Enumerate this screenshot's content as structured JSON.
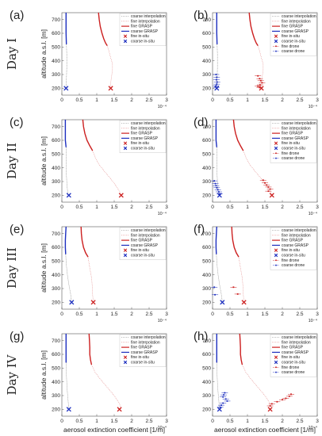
{
  "figure": {
    "day_labels": [
      "Day I",
      "Day II",
      "Day III",
      "Day IV"
    ],
    "xlabel": "aerosol extinction coefficient [1/m]",
    "ylabel": "altitude a.s.l. [m]",
    "x_exponent": "10⁻⁴",
    "colors": {
      "coarse_interpolation": "#7d7d7d",
      "fine_interpolation": "#e28a8a",
      "fine_grasp": "#cc1f1f",
      "coarse_grasp": "#1d2fbf",
      "fine_insitu": "#cc1f1f",
      "coarse_insitu": "#1d2fbf",
      "fine_drone": "#cc1f1f",
      "coarse_drone": "#1d2fbf"
    }
  },
  "chart_data": [
    {
      "panel": "(a)",
      "day": "Day I",
      "type": "line",
      "xlim": [
        0,
        3
      ],
      "ylim": [
        150,
        750
      ],
      "x_scale": "1e-4",
      "xticks": [
        "0",
        "0.5",
        "1",
        "1.5",
        "2",
        "2.5",
        "3"
      ],
      "yticks": [
        "200",
        "300",
        "400",
        "500",
        "600",
        "700"
      ],
      "ylabel": "altitude a.s.l. [m]",
      "xlabel": "",
      "legend": [
        "coarse interpolation",
        "fine interpolation",
        "fine GRASP",
        "coarse GRASP",
        "fine in-situ",
        "coarse in-situ"
      ],
      "fine_grasp": {
        "x": [
          1.05,
          1.07,
          1.1,
          1.15,
          1.2,
          1.25,
          1.3
        ],
        "y": [
          750,
          700,
          650,
          600,
          560,
          530,
          510
        ]
      },
      "fine_interpolation": {
        "x": [
          1.3,
          1.35,
          1.4,
          1.45,
          1.45,
          1.42,
          1.4,
          1.4
        ],
        "y": [
          510,
          470,
          420,
          380,
          330,
          280,
          240,
          205
        ]
      },
      "coarse_grasp": {
        "x": [
          0.12,
          0.12,
          0.12,
          0.12,
          0.13
        ],
        "y": [
          750,
          700,
          650,
          600,
          520
        ]
      },
      "coarse_interpolation": {
        "x": [
          0.13,
          0.14,
          0.14,
          0.13,
          0.12
        ],
        "y": [
          520,
          450,
          350,
          260,
          205
        ]
      },
      "fine_insitu": {
        "x": [
          1.4
        ],
        "y": [
          200
        ]
      },
      "coarse_insitu": {
        "x": [
          0.12
        ],
        "y": [
          200
        ]
      }
    },
    {
      "panel": "(b)",
      "day": "Day I",
      "type": "line",
      "xlim": [
        0,
        3
      ],
      "ylim": [
        150,
        750
      ],
      "x_scale": "1e-4",
      "xticks": [
        "0",
        "0.5",
        "1",
        "1.5",
        "2",
        "2.5",
        "3"
      ],
      "yticks": [
        "200",
        "300",
        "400",
        "500",
        "600",
        "700"
      ],
      "xlabel": "",
      "legend": [
        "coarse interpolation",
        "fine interpolation",
        "fine GRASP",
        "coarse GRASP",
        "fine in-situ",
        "coarse in-situ",
        "fine drone",
        "coarse drone"
      ],
      "fine_grasp": {
        "x": [
          1.05,
          1.07,
          1.1,
          1.15,
          1.2,
          1.25,
          1.3
        ],
        "y": [
          750,
          700,
          650,
          600,
          560,
          530,
          510
        ]
      },
      "fine_interpolation": {
        "x": [
          1.3,
          1.35,
          1.4,
          1.45,
          1.45,
          1.42,
          1.4,
          1.4
        ],
        "y": [
          510,
          470,
          420,
          380,
          330,
          280,
          240,
          205
        ]
      },
      "coarse_grasp": {
        "x": [
          0.12,
          0.12,
          0.12,
          0.12,
          0.13
        ],
        "y": [
          750,
          700,
          650,
          600,
          520
        ]
      },
      "coarse_interpolation": {
        "x": [
          0.13,
          0.14,
          0.14,
          0.13,
          0.12
        ],
        "y": [
          520,
          450,
          350,
          260,
          205
        ]
      },
      "fine_insitu": {
        "x": [
          1.4
        ],
        "y": [
          200
        ]
      },
      "coarse_insitu": {
        "x": [
          0.12
        ],
        "y": [
          200
        ]
      },
      "fine_drone": {
        "x": [
          1.3,
          1.35,
          1.38,
          1.42,
          1.36,
          1.3,
          1.35
        ],
        "y": [
          290,
          270,
          255,
          240,
          225,
          215,
          205
        ]
      },
      "coarse_drone": {
        "x": [
          0.1,
          0.12,
          0.11,
          0.13,
          0.12,
          0.1,
          0.11
        ],
        "y": [
          300,
          280,
          262,
          245,
          230,
          218,
          205
        ]
      }
    },
    {
      "panel": "(c)",
      "day": "Day II",
      "type": "line",
      "xlim": [
        0,
        3
      ],
      "ylim": [
        150,
        750
      ],
      "x_scale": "1e-4",
      "xticks": [
        "0",
        "0.5",
        "1",
        "1.5",
        "2",
        "2.5",
        "3"
      ],
      "yticks": [
        "200",
        "300",
        "400",
        "500",
        "600",
        "700"
      ],
      "ylabel": "altitude a.s.l. [m]",
      "xlabel": "",
      "legend": [
        "coarse interpolation",
        "fine interpolation",
        "fine GRASP",
        "coarse GRASP",
        "fine in-situ",
        "coarse in-situ"
      ],
      "fine_grasp": {
        "x": [
          0.6,
          0.62,
          0.66,
          0.72,
          0.8,
          0.88
        ],
        "y": [
          750,
          700,
          650,
          600,
          560,
          525
        ]
      },
      "fine_interpolation": {
        "x": [
          0.88,
          0.95,
          1.05,
          1.2,
          1.4,
          1.55,
          1.65,
          1.7
        ],
        "y": [
          525,
          480,
          430,
          380,
          320,
          270,
          230,
          205
        ]
      },
      "coarse_grasp": {
        "x": [
          0.1,
          0.1,
          0.1,
          0.1,
          0.12
        ],
        "y": [
          750,
          700,
          650,
          600,
          550
        ]
      },
      "coarse_interpolation": {
        "x": [
          0.12,
          0.13,
          0.13,
          0.15,
          0.18
        ],
        "y": [
          550,
          450,
          350,
          260,
          205
        ]
      },
      "fine_insitu": {
        "x": [
          1.7
        ],
        "y": [
          200
        ]
      },
      "coarse_insitu": {
        "x": [
          0.2
        ],
        "y": [
          200
        ]
      }
    },
    {
      "panel": "(d)",
      "day": "Day II",
      "type": "line",
      "xlim": [
        0,
        3
      ],
      "ylim": [
        150,
        750
      ],
      "x_scale": "1e-4",
      "xticks": [
        "0",
        "0.5",
        "1",
        "1.5",
        "2",
        "2.5",
        "3"
      ],
      "yticks": [
        "200",
        "300",
        "400",
        "500",
        "600",
        "700"
      ],
      "xlabel": "",
      "legend": [
        "coarse interpolation",
        "fine interpolation",
        "fine GRASP",
        "coarse GRASP",
        "fine in-situ",
        "coarse in-situ",
        "fine drone",
        "coarse drone"
      ],
      "fine_grasp": {
        "x": [
          0.6,
          0.62,
          0.66,
          0.72,
          0.8,
          0.88
        ],
        "y": [
          750,
          700,
          650,
          600,
          560,
          525
        ]
      },
      "fine_interpolation": {
        "x": [
          0.88,
          0.95,
          1.05,
          1.2,
          1.4,
          1.55,
          1.65,
          1.7
        ],
        "y": [
          525,
          480,
          430,
          380,
          320,
          270,
          230,
          205
        ]
      },
      "coarse_grasp": {
        "x": [
          0.1,
          0.1,
          0.1,
          0.1,
          0.12
        ],
        "y": [
          750,
          700,
          650,
          600,
          550
        ]
      },
      "coarse_interpolation": {
        "x": [
          0.12,
          0.13,
          0.13,
          0.15,
          0.18
        ],
        "y": [
          550,
          450,
          350,
          260,
          205
        ]
      },
      "fine_insitu": {
        "x": [
          1.7
        ],
        "y": [
          200
        ]
      },
      "coarse_insitu": {
        "x": [
          0.2
        ],
        "y": [
          200
        ]
      },
      "fine_drone": {
        "x": [
          1.45,
          1.5,
          1.55,
          1.6,
          1.65,
          1.6
        ],
        "y": [
          310,
          290,
          275,
          260,
          245,
          230
        ]
      },
      "coarse_drone": {
        "x": [
          0.05,
          0.08,
          0.1,
          0.12,
          0.15,
          0.18,
          0.2
        ],
        "y": [
          305,
          285,
          270,
          255,
          240,
          225,
          210
        ]
      }
    },
    {
      "panel": "(e)",
      "day": "Day III",
      "type": "line",
      "xlim": [
        0,
        3
      ],
      "ylim": [
        150,
        750
      ],
      "x_scale": "1e-4",
      "xticks": [
        "0",
        "0.5",
        "1",
        "1.5",
        "2",
        "2.5",
        "3"
      ],
      "yticks": [
        "200",
        "300",
        "400",
        "500",
        "600",
        "700"
      ],
      "ylabel": "altitude a.s.l. [m]",
      "xlabel": "",
      "legend": [
        "coarse interpolation",
        "fine interpolation",
        "fine GRASP",
        "coarse GRASP",
        "fine in-situ",
        "coarse in-situ"
      ],
      "fine_grasp": {
        "x": [
          0.55,
          0.56,
          0.58,
          0.62,
          0.68,
          0.75
        ],
        "y": [
          750,
          700,
          650,
          600,
          560,
          530
        ]
      },
      "fine_interpolation": {
        "x": [
          0.75,
          0.8,
          0.85,
          0.87,
          0.88,
          0.9
        ],
        "y": [
          530,
          450,
          380,
          320,
          260,
          205
        ]
      },
      "coarse_grasp": {
        "x": [
          0.12,
          0.11,
          0.1,
          0.1,
          0.11
        ],
        "y": [
          750,
          700,
          650,
          600,
          550
        ]
      },
      "coarse_interpolation": {
        "x": [
          0.11,
          0.13,
          0.16,
          0.2,
          0.25,
          0.28
        ],
        "y": [
          550,
          470,
          400,
          330,
          260,
          205
        ]
      },
      "fine_insitu": {
        "x": [
          0.9
        ],
        "y": [
          200
        ]
      },
      "coarse_insitu": {
        "x": [
          0.28
        ],
        "y": [
          200
        ]
      }
    },
    {
      "panel": "(f)",
      "day": "Day III",
      "type": "line",
      "xlim": [
        0,
        3
      ],
      "ylim": [
        150,
        750
      ],
      "x_scale": "1e-4",
      "xticks": [
        "0",
        "0.5",
        "1",
        "1.5",
        "2",
        "2.5",
        "3"
      ],
      "yticks": [
        "200",
        "300",
        "400",
        "500",
        "600",
        "700"
      ],
      "xlabel": "",
      "legend": [
        "coarse interpolation",
        "fine interpolation",
        "fine GRASP",
        "coarse GRASP",
        "fine in-situ",
        "coarse in-situ",
        "fine drone",
        "coarse drone"
      ],
      "fine_grasp": {
        "x": [
          0.55,
          0.56,
          0.58,
          0.62,
          0.68,
          0.75
        ],
        "y": [
          750,
          700,
          650,
          600,
          560,
          530
        ]
      },
      "fine_interpolation": {
        "x": [
          0.75,
          0.8,
          0.85,
          0.87,
          0.88,
          0.9
        ],
        "y": [
          530,
          450,
          380,
          320,
          260,
          205
        ]
      },
      "coarse_grasp": {
        "x": [
          0.12,
          0.11,
          0.1,
          0.1,
          0.11
        ],
        "y": [
          750,
          700,
          650,
          600,
          550
        ]
      },
      "coarse_interpolation": {
        "x": [
          0.11,
          0.13,
          0.16,
          0.2,
          0.25,
          0.28
        ],
        "y": [
          550,
          470,
          400,
          330,
          260,
          205
        ]
      },
      "fine_insitu": {
        "x": [
          0.9
        ],
        "y": [
          200
        ]
      },
      "coarse_insitu": {
        "x": [
          0.28
        ],
        "y": [
          200
        ]
      },
      "fine_drone": {
        "x": [
          0.6,
          0.72
        ],
        "y": [
          310,
          260
        ]
      },
      "coarse_drone": {
        "x": [
          0.05,
          0.07
        ],
        "y": [
          310,
          255
        ]
      }
    },
    {
      "panel": "(g)",
      "day": "Day IV",
      "type": "line",
      "xlim": [
        0,
        3
      ],
      "ylim": [
        150,
        750
      ],
      "x_scale": "1e-4",
      "xticks": [
        "0",
        "0.5",
        "1",
        "1.5",
        "2",
        "2.5",
        "3"
      ],
      "yticks": [
        "200",
        "300",
        "400",
        "500",
        "600",
        "700"
      ],
      "ylabel": "altitude a.s.l. [m]",
      "xlabel": "aerosol extinction coefficient [1/m]",
      "legend": [
        "coarse interpolation",
        "fine interpolation",
        "fine GRASP",
        "coarse GRASP",
        "fine in-situ",
        "coarse in-situ"
      ],
      "fine_grasp": {
        "x": [
          0.78,
          0.79,
          0.8,
          0.8,
          0.82,
          0.85
        ],
        "y": [
          750,
          700,
          650,
          600,
          560,
          525
        ]
      },
      "fine_interpolation": {
        "x": [
          0.85,
          0.95,
          1.1,
          1.3,
          1.5,
          1.65,
          1.7
        ],
        "y": [
          525,
          470,
          420,
          360,
          300,
          240,
          205
        ]
      },
      "coarse_grasp": {
        "x": [
          0.12,
          0.12,
          0.12,
          0.12,
          0.12
        ],
        "y": [
          750,
          700,
          650,
          600,
          540
        ]
      },
      "coarse_interpolation": {
        "x": [
          0.12,
          0.13,
          0.15,
          0.18,
          0.2
        ],
        "y": [
          540,
          450,
          350,
          260,
          205
        ]
      },
      "fine_insitu": {
        "x": [
          1.65
        ],
        "y": [
          200
        ]
      },
      "coarse_insitu": {
        "x": [
          0.2
        ],
        "y": [
          200
        ]
      }
    },
    {
      "panel": "(h)",
      "day": "Day IV",
      "type": "line",
      "xlim": [
        0,
        3
      ],
      "ylim": [
        150,
        750
      ],
      "x_scale": "1e-4",
      "xticks": [
        "0",
        "0.5",
        "1",
        "1.5",
        "2",
        "2.5",
        "3"
      ],
      "yticks": [
        "200",
        "300",
        "400",
        "500",
        "600",
        "700"
      ],
      "xlabel": "aerosol extinction coefficient [1/m]",
      "legend": [
        "coarse interpolation",
        "fine interpolation",
        "fine GRASP",
        "coarse GRASP",
        "fine in-situ",
        "coarse in-situ",
        "fine drone",
        "coarse drone"
      ],
      "fine_grasp": {
        "x": [
          0.78,
          0.79,
          0.8,
          0.8,
          0.82,
          0.85
        ],
        "y": [
          750,
          700,
          650,
          600,
          560,
          525
        ]
      },
      "fine_interpolation": {
        "x": [
          0.85,
          0.95,
          1.1,
          1.3,
          1.5,
          1.65,
          1.7
        ],
        "y": [
          525,
          470,
          420,
          360,
          300,
          240,
          205
        ]
      },
      "coarse_grasp": {
        "x": [
          0.12,
          0.12,
          0.12,
          0.12,
          0.12
        ],
        "y": [
          750,
          700,
          650,
          600,
          540
        ]
      },
      "coarse_interpolation": {
        "x": [
          0.12,
          0.13,
          0.15,
          0.18,
          0.2
        ],
        "y": [
          540,
          450,
          350,
          260,
          205
        ]
      },
      "fine_insitu": {
        "x": [
          1.65
        ],
        "y": [
          200
        ]
      },
      "coarse_insitu": {
        "x": [
          0.2
        ],
        "y": [
          200
        ]
      },
      "fine_drone": {
        "x": [
          2.25,
          2.2,
          2.1,
          2.0,
          1.85,
          1.7,
          1.65
        ],
        "y": [
          310,
          295,
          280,
          270,
          255,
          240,
          225
        ]
      },
      "coarse_drone": {
        "x": [
          0.35,
          0.32,
          0.3,
          0.38,
          0.42,
          0.3,
          0.25,
          0.22
        ],
        "y": [
          320,
          305,
          290,
          275,
          260,
          245,
          230,
          215
        ]
      }
    }
  ]
}
